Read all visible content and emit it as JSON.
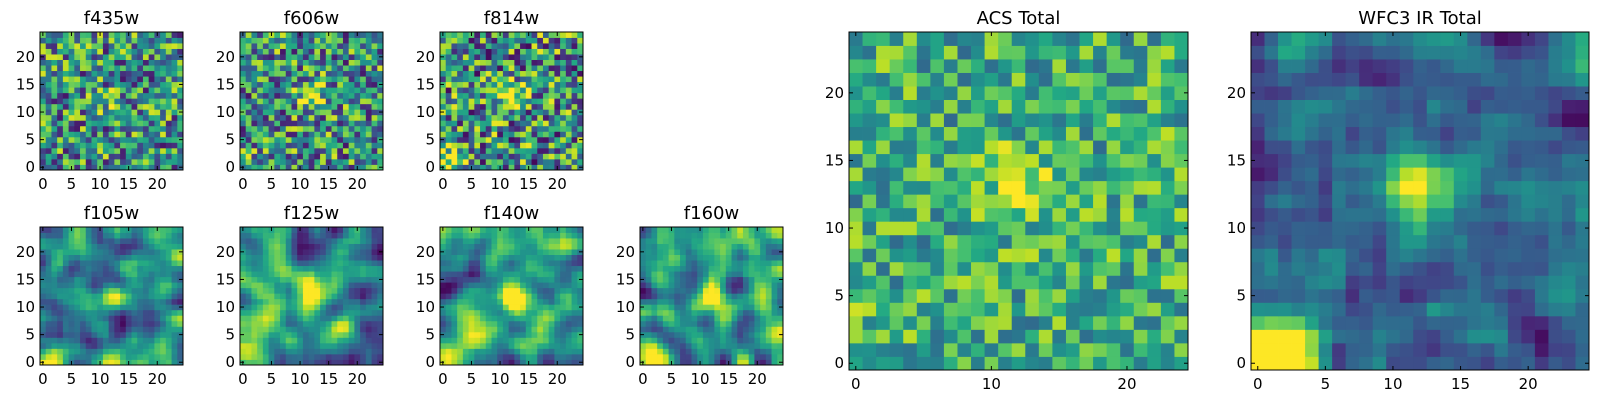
{
  "figure": {
    "description_free": true
  },
  "chart_data": [
    {
      "type": "heatmap",
      "title": "f435w",
      "grid": [
        25,
        25
      ],
      "xlim": [
        0,
        24
      ],
      "ylim": [
        0,
        24
      ],
      "xticks": [
        "0",
        "5",
        "10",
        "15",
        "20"
      ],
      "yticks": [
        "0",
        "5",
        "10",
        "15",
        "20"
      ],
      "colormap": "viridis",
      "seed": 11,
      "smooth": 0,
      "noise": 0.55,
      "peak": [
        12,
        12
      ],
      "peak_strength": 0.15,
      "corner_strength": 0.0
    },
    {
      "type": "heatmap",
      "title": "f606w",
      "grid": [
        25,
        25
      ],
      "xlim": [
        0,
        24
      ],
      "ylim": [
        0,
        24
      ],
      "xticks": [
        "0",
        "5",
        "10",
        "15",
        "20"
      ],
      "yticks": [
        "0",
        "5",
        "10",
        "15",
        "20"
      ],
      "colormap": "viridis",
      "seed": 23,
      "smooth": 0,
      "noise": 0.55,
      "peak": [
        12,
        13
      ],
      "peak_strength": 0.45,
      "corner_strength": 0.1
    },
    {
      "type": "heatmap",
      "title": "f814w",
      "grid": [
        25,
        25
      ],
      "xlim": [
        0,
        24
      ],
      "ylim": [
        0,
        24
      ],
      "xticks": [
        "0",
        "5",
        "10",
        "15",
        "20"
      ],
      "yticks": [
        "0",
        "5",
        "10",
        "15",
        "20"
      ],
      "colormap": "viridis",
      "seed": 37,
      "smooth": 0,
      "noise": 0.6,
      "peak": [
        12,
        13
      ],
      "peak_strength": 0.6,
      "corner_strength": 0.45
    },
    {
      "type": "heatmap",
      "title": "f105w",
      "grid": [
        25,
        25
      ],
      "xlim": [
        0,
        24
      ],
      "ylim": [
        0,
        24
      ],
      "xticks": [
        "0",
        "5",
        "10",
        "15",
        "20"
      ],
      "yticks": [
        "0",
        "5",
        "10",
        "15",
        "20"
      ],
      "colormap": "viridis",
      "seed": 41,
      "smooth": 2,
      "noise": 0.6,
      "peak": [
        13,
        12
      ],
      "peak_strength": 0.5,
      "corner_strength": 0.6
    },
    {
      "type": "heatmap",
      "title": "f125w",
      "grid": [
        25,
        25
      ],
      "xlim": [
        0,
        24
      ],
      "ylim": [
        0,
        24
      ],
      "xticks": [
        "0",
        "5",
        "10",
        "15",
        "20"
      ],
      "yticks": [
        "0",
        "5",
        "10",
        "15",
        "20"
      ],
      "colormap": "viridis",
      "seed": 53,
      "smooth": 2,
      "noise": 0.6,
      "peak": [
        12,
        12
      ],
      "peak_strength": 0.6,
      "corner_strength": 0.4
    },
    {
      "type": "heatmap",
      "title": "f140w",
      "grid": [
        25,
        25
      ],
      "xlim": [
        0,
        24
      ],
      "ylim": [
        0,
        24
      ],
      "xticks": [
        "0",
        "5",
        "10",
        "15",
        "20"
      ],
      "yticks": [
        "0",
        "5",
        "10",
        "15",
        "20"
      ],
      "colormap": "viridis",
      "seed": 67,
      "smooth": 2,
      "noise": 0.6,
      "peak": [
        12,
        12
      ],
      "peak_strength": 0.6,
      "corner_strength": 0.7
    },
    {
      "type": "heatmap",
      "title": "f160w",
      "grid": [
        25,
        25
      ],
      "xlim": [
        0,
        24
      ],
      "ylim": [
        0,
        24
      ],
      "xticks": [
        "0",
        "5",
        "10",
        "15",
        "20"
      ],
      "yticks": [
        "0",
        "5",
        "10",
        "15",
        "20"
      ],
      "colormap": "viridis",
      "seed": 79,
      "smooth": 2,
      "noise": 0.6,
      "peak": [
        12,
        12
      ],
      "peak_strength": 0.65,
      "corner_strength": 0.8
    },
    {
      "type": "heatmap",
      "title": "ACS Total",
      "grid": [
        25,
        25
      ],
      "xlim": [
        0,
        24
      ],
      "ylim": [
        0,
        24
      ],
      "xticks": [
        "0",
        "10",
        "20"
      ],
      "xtick_values": [
        0,
        10,
        20
      ],
      "yticks": [
        "0",
        "5",
        "10",
        "15",
        "20"
      ],
      "colormap": "viridis",
      "seed": 97,
      "smooth": 0,
      "noise": 0.35,
      "peak": [
        12,
        13
      ],
      "peak_strength": 0.35,
      "corner_strength": 0.1,
      "base": 0.62
    },
    {
      "type": "heatmap",
      "title": "WFC3 IR Total",
      "grid": [
        25,
        25
      ],
      "xlim": [
        0,
        24
      ],
      "ylim": [
        0,
        24
      ],
      "xticks": [
        "0",
        "5",
        "10",
        "15",
        "20"
      ],
      "yticks": [
        "0",
        "5",
        "10",
        "15",
        "20"
      ],
      "colormap": "viridis",
      "seed": 113,
      "smooth": 1,
      "noise": 0.4,
      "peak": [
        12,
        13
      ],
      "peak_strength": 0.65,
      "corner_strength": 0.9,
      "base": 0.35
    }
  ]
}
